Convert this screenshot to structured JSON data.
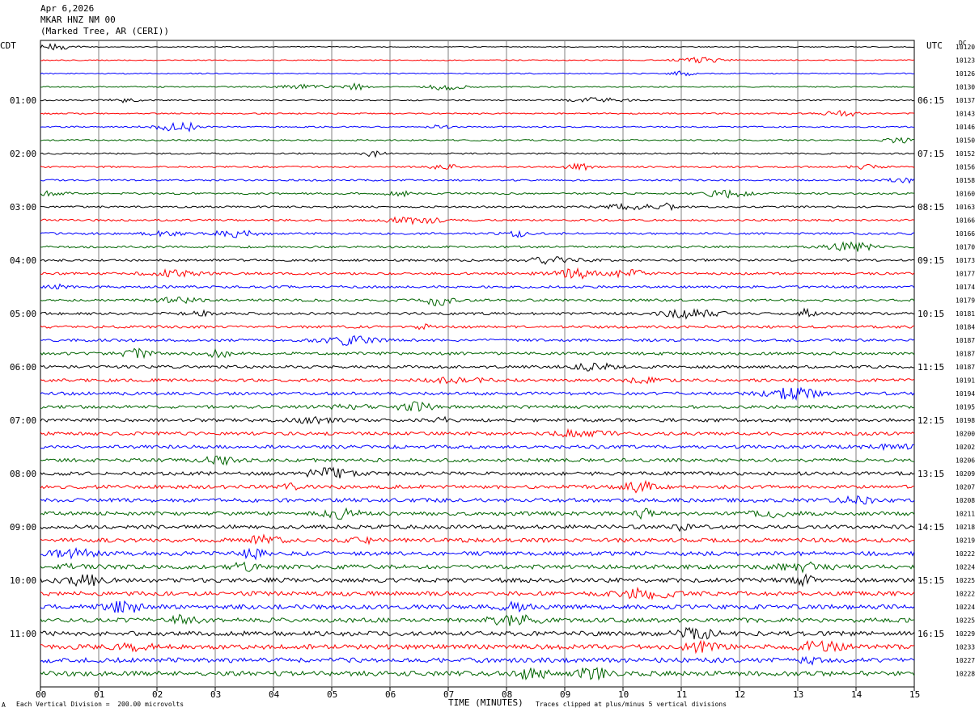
{
  "header": {
    "date": "Apr 6,2026",
    "station": "MKAR HNZ NM 00",
    "location": "(Marked Tree, AR (CERI))"
  },
  "labels": {
    "left_tz": "CDT",
    "right_tz": "UTC",
    "dc": "DC",
    "xlabel": "TIME (MINUTES)",
    "scale_note": "Each Vertical Division =  200.00 microvolts",
    "clip_note": "Traces clipped at plus/minus 5 vertical divisions",
    "corner_mark": "A"
  },
  "colors": {
    "cycle": [
      "#000000",
      "#ff0000",
      "#0000ff",
      "#006400"
    ],
    "grid": "#808080"
  },
  "chart_data": {
    "type": "line",
    "title": "",
    "xlabel": "TIME (MINUTES)",
    "x_ticks": [
      "00",
      "01",
      "02",
      "03",
      "04",
      "05",
      "06",
      "07",
      "08",
      "09",
      "10",
      "11",
      "12",
      "13",
      "14",
      "15"
    ],
    "xlim": [
      0,
      15
    ],
    "left_hour_labels": [
      "01:00",
      "02:00",
      "03:00",
      "04:00",
      "05:00",
      "06:00",
      "07:00",
      "08:00",
      "09:00",
      "10:00",
      "11:00"
    ],
    "right_hour_labels": [
      "06:15",
      "07:15",
      "08:15",
      "09:15",
      "10:15",
      "11:15",
      "12:15",
      "13:15",
      "14:15",
      "15:15",
      "16:15"
    ],
    "dc_offsets": [
      10120,
      10123,
      10126,
      10130,
      10137,
      10143,
      10146,
      10150,
      10152,
      10156,
      10158,
      10160,
      10163,
      10166,
      10166,
      10170,
      10173,
      10177,
      10174,
      10179,
      10181,
      10184,
      10187,
      10187,
      10187,
      10191,
      10194,
      10195,
      10198,
      10200,
      10202,
      10206,
      10209,
      10207,
      10208,
      10211,
      10218,
      10219,
      10222,
      10224,
      10225,
      10222,
      10224,
      10225,
      10229,
      10233,
      10227,
      10228
    ],
    "trace_count": 48,
    "amplitude_units": "vertical divisions",
    "clip_limit": 5
  }
}
